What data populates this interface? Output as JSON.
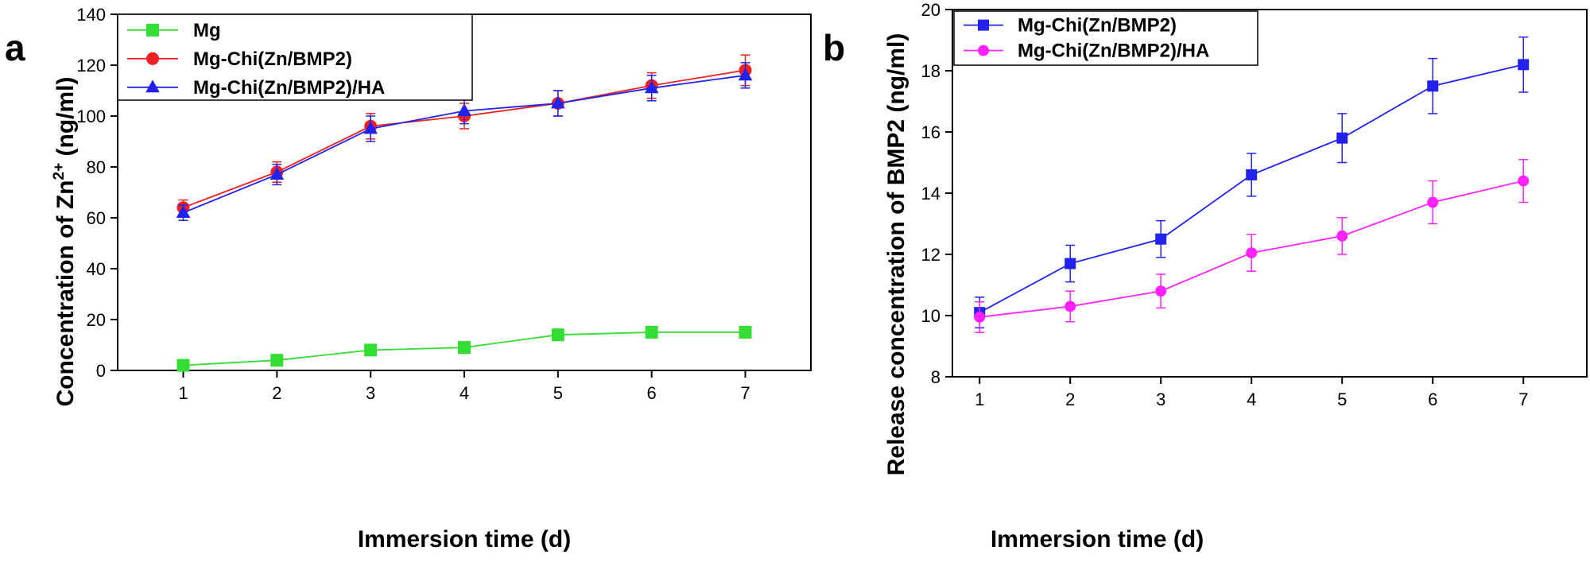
{
  "chart_data": [
    {
      "type": "line",
      "panel_label": "a",
      "xlabel": "Immersion time (d)",
      "ylabel_prefix": "Concentration of Zn",
      "ylabel_sup": "2+",
      "ylabel_suffix": " (ng/ml)",
      "x": [
        1,
        2,
        3,
        4,
        5,
        6,
        7
      ],
      "xlim": [
        0.3,
        7.7
      ],
      "ylim": [
        0,
        140
      ],
      "xticks": [
        1,
        2,
        3,
        4,
        5,
        6,
        7
      ],
      "yticks": [
        0,
        20,
        40,
        60,
        80,
        100,
        120,
        140
      ],
      "legend_position": "top-left",
      "series": [
        {
          "name": "Mg",
          "color": "#33dd33",
          "marker": "square",
          "values": [
            2,
            4,
            8,
            9,
            14,
            15,
            15
          ],
          "errors": [
            0,
            0,
            0,
            0,
            0,
            0,
            0
          ]
        },
        {
          "name": "Mg-Chi(Zn/BMP2)",
          "color": "#ee2222",
          "marker": "circle",
          "values": [
            64,
            78,
            96,
            100,
            105,
            112,
            118
          ],
          "errors": [
            3,
            4,
            5,
            5,
            5,
            5,
            6
          ]
        },
        {
          "name": "Mg-Chi(Zn/BMP2)/HA",
          "color": "#2222ee",
          "marker": "triangle",
          "values": [
            62,
            77,
            95,
            102,
            105,
            111,
            116
          ],
          "errors": [
            3,
            4,
            5,
            5,
            5,
            5,
            5
          ]
        }
      ]
    },
    {
      "type": "line",
      "panel_label": "b",
      "xlabel": "Immersion time (d)",
      "ylabel": "Release concentration of BMP2 (ng/ml)",
      "x": [
        1,
        2,
        3,
        4,
        5,
        6,
        7
      ],
      "xlim": [
        0.7,
        7.7
      ],
      "ylim": [
        8,
        20
      ],
      "xticks": [
        1,
        2,
        3,
        4,
        5,
        6,
        7
      ],
      "yticks": [
        8,
        10,
        12,
        14,
        16,
        18,
        20
      ],
      "legend_position": "top-left",
      "series": [
        {
          "name": "Mg-Chi(Zn/BMP2)",
          "color": "#2222ee",
          "marker": "square",
          "values": [
            10.1,
            11.7,
            12.5,
            14.6,
            15.8,
            17.5,
            18.2
          ],
          "errors": [
            0.5,
            0.6,
            0.6,
            0.7,
            0.8,
            0.9,
            0.9
          ]
        },
        {
          "name": "Mg-Chi(Zn/BMP2)/HA",
          "color": "#ff22ff",
          "marker": "circle",
          "values": [
            9.95,
            10.3,
            10.8,
            12.05,
            12.6,
            13.7,
            14.4
          ],
          "errors": [
            0.5,
            0.5,
            0.55,
            0.6,
            0.6,
            0.7,
            0.7
          ]
        }
      ]
    }
  ]
}
